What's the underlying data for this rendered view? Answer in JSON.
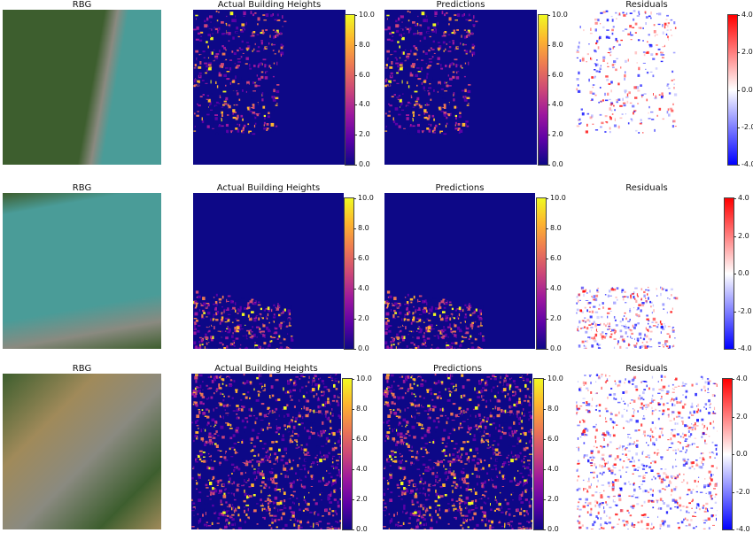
{
  "rows": [
    {
      "rgb_title": "RBG",
      "actual_title": "Actual Building Heights",
      "pred_title": "Predictions",
      "resid_title": "Residuals",
      "height_ticks": [
        "0.0",
        "2.0",
        "4.0",
        "6.0",
        "8.0",
        "10.0"
      ],
      "resid_ticks": [
        "-4.0",
        "-2.0",
        "0.0",
        "2.0",
        "4.0"
      ]
    },
    {
      "rgb_title": "RBG",
      "actual_title": "Actual Building Heights",
      "pred_title": "Predictions",
      "resid_title": "Residuals",
      "height_ticks": [
        "0.0",
        "2.0",
        "4.0",
        "6.0",
        "8.0",
        "10.0"
      ],
      "resid_ticks": [
        "-4.0",
        "-2.0",
        "0.0",
        "2.0",
        "4.0"
      ]
    },
    {
      "rgb_title": "RBG",
      "actual_title": "Actual Building Heights",
      "pred_title": "Predictions",
      "resid_title": "Residuals",
      "height_ticks": [
        "0.0",
        "2.0",
        "4.0",
        "6.0",
        "8.0",
        "10.0"
      ],
      "resid_ticks": [
        "-4.0",
        "-2.0",
        "0.0",
        "2.0",
        "4.0"
      ]
    }
  ],
  "colors": {
    "height_colormap": [
      "#0d0887",
      "#5c01a6",
      "#9c179e",
      "#cc4778",
      "#ed7953",
      "#fdb42f",
      "#f0f921"
    ],
    "residual_colormap": [
      "#0000ff",
      "#ffffff",
      "#ff0000"
    ],
    "water": "#4a9c98",
    "land": "#3d5e2e",
    "urban": "#8a8a80"
  }
}
